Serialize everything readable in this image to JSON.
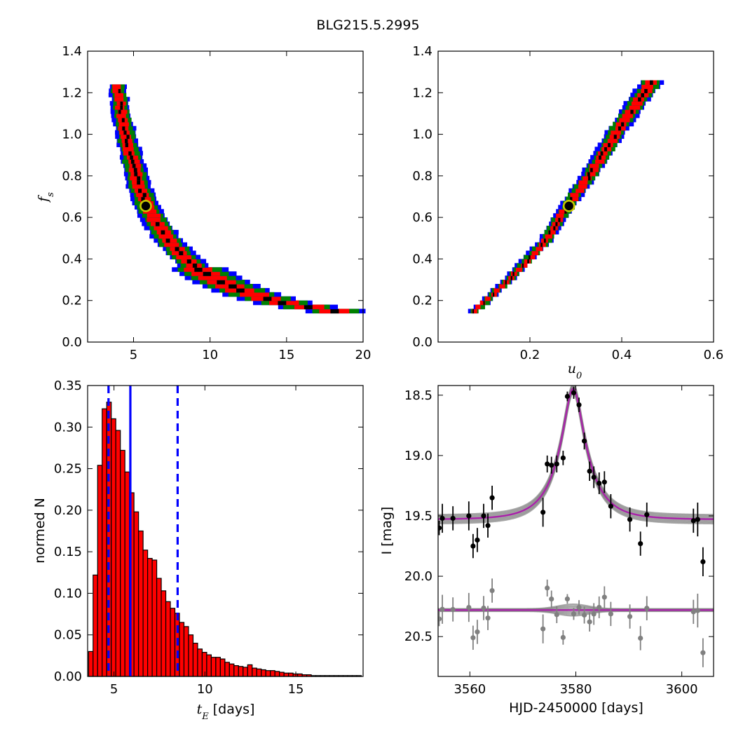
{
  "figure": {
    "suptitle": "BLG215.5.2995"
  },
  "chart_data": [
    {
      "id": "fs_vs_tE",
      "type": "heatmap",
      "ylabel": "f",
      "ylabel_sub": "s",
      "xlabel": "",
      "xlim": [
        2,
        20
      ],
      "ylim": [
        0,
        1.4
      ],
      "xticks": [
        5,
        10,
        15,
        20
      ],
      "yticks": [
        0.0,
        0.2,
        0.4,
        0.6,
        0.8,
        1.0,
        1.2,
        1.4
      ],
      "xtick_labels": [
        "5",
        "10",
        "15",
        "20"
      ],
      "ytick_labels": [
        "0.0",
        "0.2",
        "0.4",
        "0.6",
        "0.8",
        "1.0",
        "1.2",
        "1.4"
      ],
      "confidence_colors": [
        "#0000ff",
        "#008000",
        "#ff0000",
        "#000000"
      ],
      "ridge": [
        [
          3.9,
          1.24
        ],
        [
          4.2,
          1.1
        ],
        [
          4.6,
          0.96
        ],
        [
          5.0,
          0.84
        ],
        [
          5.4,
          0.74
        ],
        [
          5.9,
          0.65
        ],
        [
          6.6,
          0.55
        ],
        [
          7.4,
          0.47
        ],
        [
          8.3,
          0.4
        ],
        [
          9.3,
          0.34
        ],
        [
          10.5,
          0.29
        ],
        [
          11.8,
          0.245
        ],
        [
          13.2,
          0.21
        ],
        [
          14.8,
          0.18
        ],
        [
          16.4,
          0.16
        ],
        [
          18.2,
          0.14
        ]
      ],
      "best_fit": {
        "x": 5.8,
        "y": 0.655
      }
    },
    {
      "id": "fs_vs_u0",
      "type": "heatmap",
      "xlabel": "u",
      "xlabel_sub": "0",
      "ylabel": "",
      "xlim": [
        0,
        0.6
      ],
      "ylim": [
        0,
        1.4
      ],
      "xticks": [
        0.2,
        0.4,
        0.6
      ],
      "yticks": [
        0.0,
        0.2,
        0.4,
        0.6,
        0.8,
        1.0,
        1.2,
        1.4
      ],
      "xtick_labels": [
        "0.2",
        "0.4",
        "0.6"
      ],
      "ytick_labels": [
        "0.0",
        "0.2",
        "0.4",
        "0.6",
        "0.8",
        "1.0",
        "1.2",
        "1.4"
      ],
      "confidence_colors": [
        "#0000ff",
        "#008000",
        "#ff0000",
        "#000000"
      ],
      "ridge": [
        [
          0.08,
          0.14
        ],
        [
          0.13,
          0.24
        ],
        [
          0.18,
          0.35
        ],
        [
          0.23,
          0.47
        ],
        [
          0.285,
          0.655
        ],
        [
          0.32,
          0.76
        ],
        [
          0.36,
          0.9
        ],
        [
          0.4,
          1.04
        ],
        [
          0.44,
          1.17
        ],
        [
          0.47,
          1.25
        ]
      ],
      "best_fit": {
        "x": 0.285,
        "y": 0.655
      }
    },
    {
      "id": "tE_histogram",
      "type": "bar",
      "xlabel": "[days]",
      "xlabel_math": "t",
      "xlabel_sub": "E",
      "ylabel": "normed N",
      "xlim": [
        3.55,
        18.7
      ],
      "ylim": [
        0,
        0.35
      ],
      "xticks": [
        5,
        10,
        15
      ],
      "yticks": [
        0.0,
        0.05,
        0.1,
        0.15,
        0.2,
        0.25,
        0.3,
        0.35
      ],
      "xtick_labels": [
        "5",
        "10",
        "15"
      ],
      "ytick_labels": [
        "0.00",
        "0.05",
        "0.10",
        "0.15",
        "0.20",
        "0.25",
        "0.30",
        "0.35"
      ],
      "bin_start": 3.6,
      "bin_width": 0.25,
      "values": [
        0.03,
        0.122,
        0.254,
        0.322,
        0.33,
        0.31,
        0.296,
        0.272,
        0.246,
        0.221,
        0.198,
        0.175,
        0.152,
        0.142,
        0.14,
        0.118,
        0.103,
        0.09,
        0.082,
        0.076,
        0.065,
        0.06,
        0.05,
        0.04,
        0.033,
        0.029,
        0.026,
        0.023,
        0.023,
        0.021,
        0.017,
        0.015,
        0.013,
        0.012,
        0.011,
        0.014,
        0.01,
        0.009,
        0.008,
        0.007,
        0.007,
        0.006,
        0.005,
        0.004,
        0.004,
        0.003,
        0.003,
        0.002,
        0.002,
        0.001,
        0.001,
        0.001,
        0.001,
        0.001,
        0.001,
        0.001,
        0.001,
        0.001,
        0.001,
        0.001
      ],
      "bar_color": "#ff0000",
      "median": 5.9,
      "lower": 4.7,
      "upper": 8.5,
      "line_color": "#0000ff"
    },
    {
      "id": "lightcurve",
      "type": "scatter",
      "xlabel": "HJD-2450000 [days]",
      "ylabel": "I [mag]",
      "xlim": [
        3554,
        3606
      ],
      "ylim": [
        20.83,
        18.42
      ],
      "xticks": [
        3560,
        3580,
        3600
      ],
      "yticks": [
        18.5,
        19.0,
        19.5,
        20.0,
        20.5
      ],
      "xtick_labels": [
        "3560",
        "3580",
        "3600"
      ],
      "ytick_labels": [
        "18.5",
        "19.0",
        "19.5",
        "20.0",
        "20.5"
      ],
      "model": {
        "t0": 3579.5,
        "tE": 5.9,
        "u0": 0.285,
        "fs": 0.655,
        "I_base": 19.53
      },
      "model_color": "#aa22aa",
      "residual_offset": 20.28,
      "points": [
        {
          "t": 3554.2,
          "mag": 19.6,
          "err": 0.06
        },
        {
          "t": 3554.8,
          "mag": 19.52,
          "err": 0.12
        },
        {
          "t": 3556.8,
          "mag": 19.52,
          "err": 0.1
        },
        {
          "t": 3559.8,
          "mag": 19.5,
          "err": 0.12
        },
        {
          "t": 3560.6,
          "mag": 19.75,
          "err": 0.1
        },
        {
          "t": 3561.4,
          "mag": 19.7,
          "err": 0.1
        },
        {
          "t": 3562.6,
          "mag": 19.5,
          "err": 0.1
        },
        {
          "t": 3563.4,
          "mag": 19.58,
          "err": 0.1
        },
        {
          "t": 3564.2,
          "mag": 19.35,
          "err": 0.1
        },
        {
          "t": 3573.8,
          "mag": 19.47,
          "err": 0.12
        },
        {
          "t": 3574.6,
          "mag": 19.07,
          "err": 0.07
        },
        {
          "t": 3575.4,
          "mag": 19.08,
          "err": 0.07
        },
        {
          "t": 3576.4,
          "mag": 19.07,
          "err": 0.07
        },
        {
          "t": 3577.6,
          "mag": 19.02,
          "err": 0.06
        },
        {
          "t": 3578.4,
          "mag": 18.51,
          "err": 0.04
        },
        {
          "t": 3579.6,
          "mag": 18.48,
          "err": 0.05
        },
        {
          "t": 3580.6,
          "mag": 18.58,
          "err": 0.06
        },
        {
          "t": 3581.6,
          "mag": 18.88,
          "err": 0.07
        },
        {
          "t": 3582.6,
          "mag": 19.13,
          "err": 0.08
        },
        {
          "t": 3583.4,
          "mag": 19.18,
          "err": 0.09
        },
        {
          "t": 3584.4,
          "mag": 19.23,
          "err": 0.09
        },
        {
          "t": 3585.4,
          "mag": 19.22,
          "err": 0.09
        },
        {
          "t": 3586.6,
          "mag": 19.42,
          "err": 0.1
        },
        {
          "t": 3590.2,
          "mag": 19.53,
          "err": 0.1
        },
        {
          "t": 3592.2,
          "mag": 19.73,
          "err": 0.1
        },
        {
          "t": 3593.4,
          "mag": 19.49,
          "err": 0.1
        },
        {
          "t": 3602.2,
          "mag": 19.54,
          "err": 0.1
        },
        {
          "t": 3603.0,
          "mag": 19.53,
          "err": 0.14
        },
        {
          "t": 3604.0,
          "mag": 19.88,
          "err": 0.12
        }
      ]
    }
  ]
}
